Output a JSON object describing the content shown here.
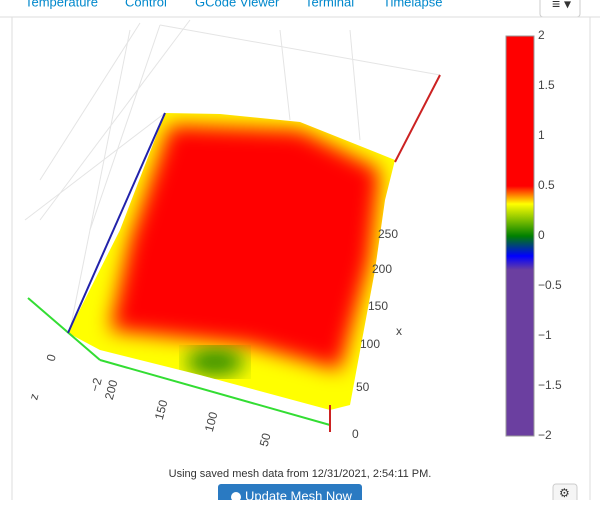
{
  "tabs": [
    "Temperature",
    "Control",
    "GCode Viewer",
    "Terminal",
    "Timelapse"
  ],
  "plot": {
    "colorbar_ticks": [
      "2",
      "1.5",
      "1",
      "0.5",
      "0",
      "−0.5",
      "−1",
      "−1.5",
      "−2"
    ],
    "x_axis": {
      "title": "x",
      "ticks": [
        "0",
        "50",
        "100",
        "150",
        "200",
        "250"
      ]
    },
    "y_axis": {
      "ticks": [
        "200",
        "150",
        "100",
        "50"
      ]
    },
    "z_axis": {
      "title": "z",
      "ticks": [
        "0",
        "−2"
      ]
    }
  },
  "footer": {
    "status": "Using saved mesh data from 12/31/2021, 2:54:11 PM.",
    "button": "Update Mesh Now"
  }
}
